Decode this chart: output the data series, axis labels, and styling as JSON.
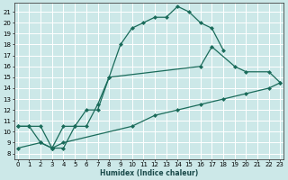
{
  "xlabel": "Humidex (Indice chaleur)",
  "bg_color": "#cce8e8",
  "line_color": "#1a6b5a",
  "grid_color": "#b8d8d8",
  "curve1": {
    "x": [
      0,
      1,
      2,
      3,
      4,
      5,
      6,
      7,
      8,
      9,
      10,
      11,
      12,
      13,
      14,
      15,
      16,
      17,
      18
    ],
    "y": [
      10.5,
      10.5,
      10.5,
      8.5,
      8.5,
      10.5,
      10.5,
      12.5,
      15.0,
      18.0,
      19.5,
      20.0,
      20.5,
      20.5,
      21.5,
      21.0,
      20.0,
      19.5,
      17.5
    ]
  },
  "curve2": {
    "x": [
      0,
      1,
      2,
      3,
      4,
      5,
      6,
      7,
      8,
      16,
      17,
      19,
      20,
      22,
      23
    ],
    "y": [
      10.5,
      10.5,
      9.0,
      8.5,
      10.5,
      10.5,
      12.0,
      12.0,
      15.0,
      16.0,
      17.8,
      16.0,
      15.5,
      15.5,
      14.5
    ]
  },
  "curve3": {
    "x": [
      0,
      2,
      3,
      4,
      10,
      12,
      14,
      16,
      18,
      20,
      22,
      23
    ],
    "y": [
      8.5,
      9.0,
      8.5,
      9.0,
      10.5,
      11.5,
      12.0,
      12.5,
      13.0,
      13.5,
      14.0,
      14.5
    ]
  },
  "xlim": [
    -0.3,
    23.3
  ],
  "ylim": [
    7.5,
    21.8
  ],
  "yticks": [
    8,
    9,
    10,
    11,
    12,
    13,
    14,
    15,
    16,
    17,
    18,
    19,
    20,
    21
  ],
  "xticks": [
    0,
    1,
    2,
    3,
    4,
    5,
    6,
    7,
    8,
    9,
    10,
    11,
    12,
    13,
    14,
    15,
    16,
    17,
    18,
    19,
    20,
    21,
    22,
    23
  ]
}
